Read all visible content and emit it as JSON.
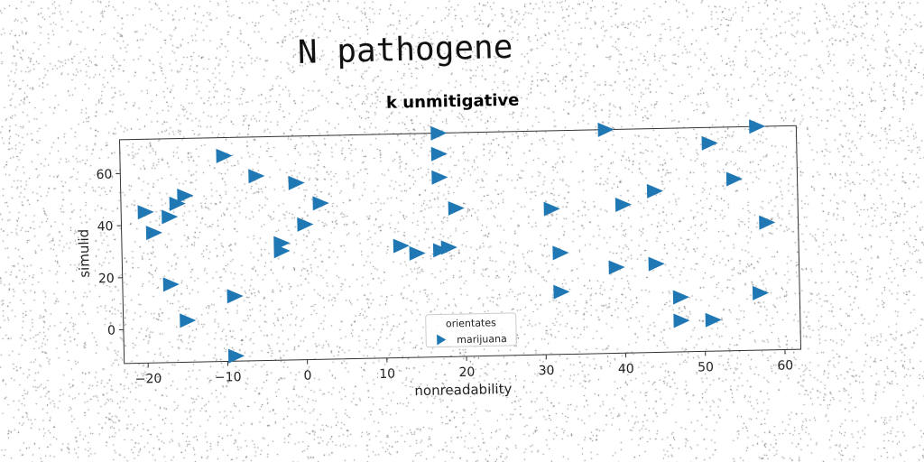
{
  "suptitle": "N pathogene",
  "chart_data": {
    "type": "scatter",
    "title": "k unmitigative",
    "xlabel": "nonreadability",
    "ylabel": "simulid",
    "xlim": [
      -23,
      62
    ],
    "ylim": [
      -13,
      73
    ],
    "xticks": [
      -20,
      -10,
      0,
      10,
      20,
      30,
      40,
      50,
      60
    ],
    "yticks": [
      0,
      20,
      40,
      60
    ],
    "marker": "triangle-right",
    "color": "#1f77b4",
    "legend": {
      "title": "orientates",
      "placement": "bottom-center",
      "entries": [
        "marijuana"
      ]
    },
    "series": [
      {
        "name": "marijuana",
        "points": [
          [
            -20,
            45
          ],
          [
            -19,
            37
          ],
          [
            -17,
            43
          ],
          [
            -16,
            48
          ],
          [
            -15,
            51
          ],
          [
            -17,
            17
          ],
          [
            -15,
            3
          ],
          [
            -10,
            66
          ],
          [
            -9,
            12
          ],
          [
            -9,
            -11
          ],
          [
            -6,
            58
          ],
          [
            -3,
            32
          ],
          [
            -3,
            29
          ],
          [
            -1,
            55
          ],
          [
            0,
            39
          ],
          [
            2,
            47
          ],
          [
            12,
            30
          ],
          [
            14,
            27
          ],
          [
            17,
            28
          ],
          [
            18,
            29
          ],
          [
            17,
            73
          ],
          [
            17,
            65
          ],
          [
            17,
            56
          ],
          [
            19,
            44
          ],
          [
            31,
            43
          ],
          [
            32,
            26
          ],
          [
            32,
            11
          ],
          [
            38,
            73
          ],
          [
            39,
            20
          ],
          [
            40,
            44
          ],
          [
            44,
            21
          ],
          [
            44,
            49
          ],
          [
            47,
            8
          ],
          [
            47,
            -1
          ],
          [
            51,
            67
          ],
          [
            51,
            -1
          ],
          [
            54,
            53
          ],
          [
            57,
            73
          ],
          [
            58,
            36
          ],
          [
            57,
            9
          ]
        ]
      }
    ]
  }
}
